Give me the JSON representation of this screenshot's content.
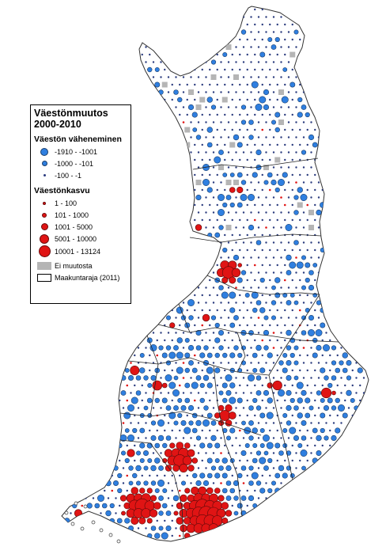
{
  "legend": {
    "title_line1": "Väestönmuutos",
    "title_line2": "2000-2010",
    "decrease_heading": "Väestön väheneminen",
    "decrease_items": [
      {
        "label": "-1910 - -1001",
        "size": "large"
      },
      {
        "label": "-1000 - -101",
        "size": "medium"
      },
      {
        "label": "-100 - -1",
        "size": "small"
      }
    ],
    "growth_heading": "Väestönkasvu",
    "growth_items": [
      {
        "label": "1 - 100",
        "size": "xs"
      },
      {
        "label": "101 - 1000",
        "size": "s"
      },
      {
        "label": "1001 - 5000",
        "size": "m"
      },
      {
        "label": "5001 - 10000",
        "size": "l"
      },
      {
        "label": "10001 - 13124",
        "size": "xl"
      }
    ],
    "no_change_label": "Ei muutosta",
    "boundary_label": "Maakuntaraja (2011)"
  },
  "colors": {
    "decrease": "#2f7fe0",
    "decrease_small": "#2b3c7e",
    "growth": "#e01414",
    "no_change": "#b5b5b5",
    "boundary": "#000000"
  }
}
